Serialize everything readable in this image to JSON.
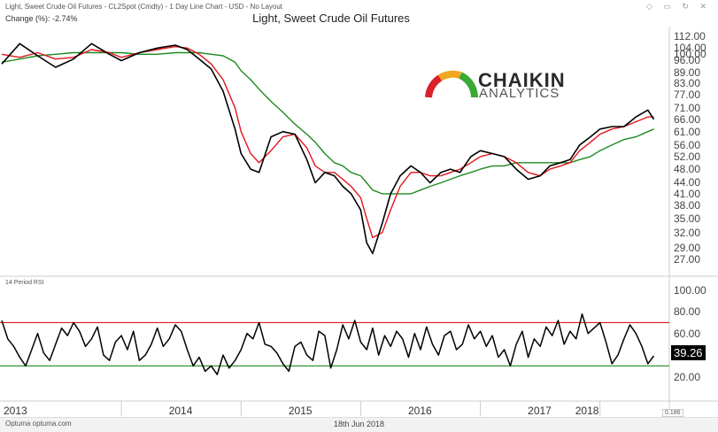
{
  "header": {
    "instrument_line": "Light, Sweet Crude Oil Futures - CL2Spot (Cmdty) - 1 Day Line Chart - USD - No Layout",
    "change_line": "Change (%): -2.74%",
    "window_icons": "◇ ▭ ↻ ✕"
  },
  "logo": {
    "name": "CHAIKIN",
    "tm": "™",
    "sub": "ANALYTICS"
  },
  "rsi_panel": {
    "label": "14 Period RSI",
    "current_value": "39.26"
  },
  "footer": {
    "brand": "Optuma  optuma.com",
    "date": "18th Jun 2018",
    "scale": "0.186"
  },
  "colors": {
    "price": "#000000",
    "ma_short": "#e3141c",
    "ma_long": "#1f8a1f",
    "rsi_upper": "#e3141c",
    "rsi_lower": "#1f8a1f"
  },
  "chart_data": [
    {
      "type": "line",
      "title": "Light, Sweet Crude Oil Futures",
      "x_tick_labels": [
        "2013",
        "2014",
        "2015",
        "2016",
        "2017",
        "2018"
      ],
      "y_tick_labels": [
        "112.00",
        "104.00",
        "100.00",
        "96.00",
        "89.00",
        "83.00",
        "77.00",
        "71.00",
        "66.00",
        "61.00",
        "56.00",
        "52.00",
        "48.00",
        "44.00",
        "41.00",
        "38.00",
        "35.00",
        "32.00",
        "29.00",
        "27.00"
      ],
      "y_scale": "log",
      "x": [
        2013.0,
        2013.15,
        2013.3,
        2013.45,
        2013.6,
        2013.75,
        2013.9,
        2014.0,
        2014.15,
        2014.3,
        2014.45,
        2014.55,
        2014.65,
        2014.75,
        2014.85,
        2014.95,
        2015.0,
        2015.08,
        2015.15,
        2015.25,
        2015.35,
        2015.45,
        2015.55,
        2015.62,
        2015.7,
        2015.78,
        2015.85,
        2015.92,
        2016.0,
        2016.05,
        2016.1,
        2016.18,
        2016.25,
        2016.33,
        2016.42,
        2016.5,
        2016.58,
        2016.67,
        2016.75,
        2016.83,
        2016.92,
        2017.0,
        2017.1,
        2017.2,
        2017.3,
        2017.4,
        2017.5,
        2017.58,
        2017.67,
        2017.75,
        2017.83,
        2017.92,
        2018.0,
        2018.1,
        2018.2,
        2018.3,
        2018.4,
        2018.45
      ],
      "series": [
        {
          "values": [
            94,
            107,
            99,
            92,
            97,
            107,
            100,
            96,
            101,
            104,
            106,
            103,
            97,
            91,
            79,
            62,
            53,
            48,
            47,
            59,
            61,
            60,
            51,
            44,
            47,
            46,
            43,
            41,
            37,
            30,
            28,
            34,
            41,
            46,
            49,
            47,
            44,
            47,
            48,
            47,
            52,
            54,
            53,
            52,
            48,
            45,
            46,
            49,
            50,
            51,
            56,
            59,
            62,
            63,
            63,
            67,
            70,
            66
          ]
        },
        {
          "values": [
            100,
            98,
            101,
            97,
            98,
            103,
            101,
            98,
            101,
            103,
            105,
            104,
            100,
            94,
            85,
            71,
            61,
            53,
            50,
            54,
            59,
            60,
            55,
            49,
            47,
            47,
            45,
            43,
            40,
            35,
            31,
            32,
            37,
            43,
            47,
            47,
            46,
            46,
            47,
            48,
            50,
            52,
            53,
            52,
            50,
            47,
            46,
            48,
            49,
            50,
            54,
            57,
            60,
            62,
            63,
            65,
            67,
            67
          ]
        },
        {
          "values": [
            95,
            97,
            99,
            100,
            101,
            101,
            101,
            101,
            100,
            100,
            101,
            101,
            101,
            100,
            99,
            95,
            90,
            85,
            80,
            74,
            69,
            64,
            60,
            57,
            53,
            50,
            49,
            47,
            46,
            44,
            42,
            41,
            41,
            41,
            41,
            42,
            43,
            44,
            45,
            46,
            47,
            48,
            49,
            49,
            50,
            50,
            50,
            50,
            50,
            50,
            51,
            52,
            54,
            56,
            58,
            59,
            61,
            62
          ]
        }
      ],
      "ylim": [
        24.5,
        118
      ]
    },
    {
      "type": "line",
      "title": "14 Period RSI",
      "y_tick_labels": [
        "100.00",
        "80.00",
        "60.00",
        "40.00",
        "20.00"
      ],
      "ylim": [
        0,
        108
      ],
      "reference_lines": [
        70,
        30
      ],
      "x": [
        2013.0,
        2013.05,
        2013.1,
        2013.15,
        2013.2,
        2013.25,
        2013.3,
        2013.35,
        2013.4,
        2013.45,
        2013.5,
        2013.55,
        2013.6,
        2013.65,
        2013.7,
        2013.75,
        2013.8,
        2013.85,
        2013.9,
        2013.95,
        2014.0,
        2014.05,
        2014.1,
        2014.15,
        2014.2,
        2014.25,
        2014.3,
        2014.35,
        2014.4,
        2014.45,
        2014.5,
        2014.55,
        2014.6,
        2014.65,
        2014.7,
        2014.75,
        2014.8,
        2014.85,
        2014.9,
        2014.95,
        2015.0,
        2015.05,
        2015.1,
        2015.15,
        2015.2,
        2015.25,
        2015.3,
        2015.35,
        2015.4,
        2015.45,
        2015.5,
        2015.55,
        2015.6,
        2015.65,
        2015.7,
        2015.75,
        2015.8,
        2015.85,
        2015.9,
        2015.95,
        2016.0,
        2016.05,
        2016.1,
        2016.15,
        2016.2,
        2016.25,
        2016.3,
        2016.35,
        2016.4,
        2016.45,
        2016.5,
        2016.55,
        2016.6,
        2016.65,
        2016.7,
        2016.75,
        2016.8,
        2016.85,
        2016.9,
        2016.95,
        2017.0,
        2017.05,
        2017.1,
        2017.15,
        2017.2,
        2017.25,
        2017.3,
        2017.35,
        2017.4,
        2017.45,
        2017.5,
        2017.55,
        2017.6,
        2017.65,
        2017.7,
        2017.75,
        2017.8,
        2017.85,
        2017.9,
        2017.95,
        2018.0,
        2018.05,
        2018.1,
        2018.15,
        2018.2,
        2018.25,
        2018.3,
        2018.35,
        2018.4,
        2018.45
      ],
      "series": [
        {
          "values": [
            72,
            55,
            48,
            38,
            30,
            45,
            60,
            42,
            35,
            50,
            65,
            58,
            70,
            62,
            48,
            55,
            66,
            40,
            35,
            52,
            58,
            45,
            62,
            35,
            40,
            50,
            65,
            48,
            55,
            68,
            62,
            45,
            30,
            38,
            25,
            30,
            22,
            40,
            28,
            35,
            45,
            60,
            55,
            70,
            50,
            48,
            42,
            32,
            25,
            48,
            52,
            40,
            35,
            62,
            58,
            28,
            45,
            68,
            55,
            72,
            52,
            45,
            65,
            40,
            58,
            48,
            62,
            55,
            38,
            60,
            45,
            66,
            50,
            40,
            58,
            62,
            45,
            50,
            68,
            55,
            62,
            48,
            58,
            38,
            45,
            30,
            50,
            62,
            38,
            55,
            48,
            66,
            58,
            72,
            50,
            62,
            55,
            78,
            60,
            65,
            70,
            52,
            32,
            40,
            55,
            68,
            60,
            48,
            32,
            39.26
          ]
        }
      ]
    }
  ]
}
